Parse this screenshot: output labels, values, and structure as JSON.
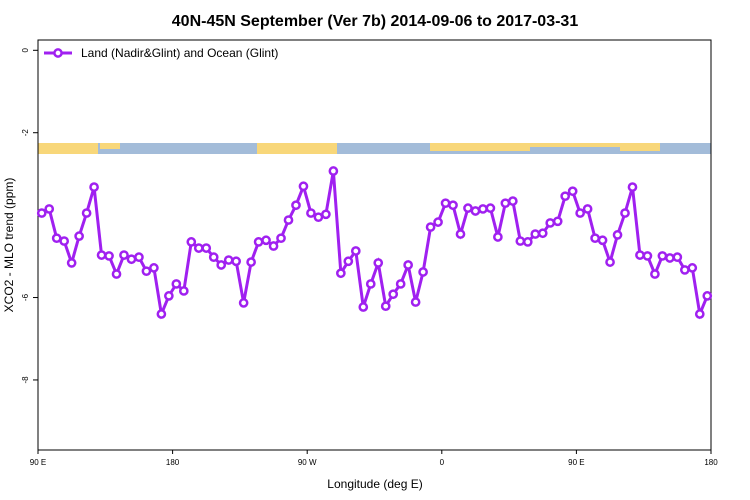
{
  "chart_data": {
    "type": "line",
    "title": "40N-45N September (Ver 7b)   2014-09-06 to 2017-03-31",
    "xlabel": "Longitude (deg E)",
    "ylabel": "XCO2 - MLO trend (ppm)",
    "xlim": [
      90,
      540
    ],
    "ylim": [
      -9.7,
      0.25
    ],
    "xticks": [
      {
        "value": 90,
        "label": "90 E"
      },
      180,
      {
        "value": 270,
        "label": "90 W"
      },
      {
        "value": 360,
        "label": "0"
      },
      {
        "value": 450,
        "label": "90 E"
      },
      {
        "value": 540,
        "label": "180"
      }
    ],
    "yticks": [
      0,
      -2,
      -6,
      -8
    ],
    "legend": "top-left",
    "x": [
      92.5,
      97.5,
      102.5,
      107.5,
      112.5,
      117.5,
      122.5,
      127.5,
      132.5,
      137.5,
      142.5,
      147.5,
      152.5,
      157.5,
      162.5,
      167.5,
      172.5,
      177.5,
      182.5,
      187.5,
      192.5,
      197.5,
      202.5,
      207.5,
      212.5,
      217.5,
      222.5,
      227.5,
      232.5,
      237.5,
      242.5,
      247.5,
      252.5,
      257.5,
      262.5,
      267.5,
      272.5,
      277.5,
      282.5,
      287.5,
      292.5,
      297.5,
      302.5,
      307.5,
      312.5,
      317.5,
      322.5,
      327.5,
      332.5,
      337.5,
      342.5,
      347.5,
      352.5,
      357.5,
      362.5,
      367.5,
      372.5,
      377.5,
      382.5,
      387.5,
      392.5,
      397.5,
      402.5,
      407.5,
      412.5,
      417.5,
      422.5,
      427.5,
      432.5,
      437.5,
      442.5,
      447.5,
      452.5,
      457.5,
      462.5,
      467.5,
      472.5,
      477.5,
      482.5,
      487.5,
      492.5,
      497.5,
      502.5,
      507.5,
      512.5,
      517.5,
      522.5,
      527.5,
      532.5,
      537.5
    ],
    "series": [
      {
        "name": "Land (Nadir&Glint) and Ocean (Glint)",
        "color": "#a020f0",
        "values": [
          -3.95,
          -3.85,
          -4.56,
          -4.63,
          -5.16,
          -4.51,
          -3.95,
          -3.32,
          -4.97,
          -4.99,
          -5.43,
          -4.97,
          -5.07,
          -5.02,
          -5.36,
          -5.28,
          -6.4,
          -5.96,
          -5.67,
          -5.84,
          -4.65,
          -4.8,
          -4.8,
          -5.02,
          -5.21,
          -5.09,
          -5.12,
          -6.13,
          -5.14,
          -4.65,
          -4.61,
          -4.75,
          -4.56,
          -4.12,
          -3.76,
          -3.3,
          -3.95,
          -4.05,
          -3.98,
          -2.93,
          -5.41,
          -5.12,
          -4.87,
          -6.23,
          -5.67,
          -5.16,
          -6.21,
          -5.92,
          -5.67,
          -5.21,
          -6.11,
          -5.38,
          -4.29,
          -4.17,
          -3.71,
          -3.76,
          -4.46,
          -3.83,
          -3.9,
          -3.85,
          -3.83,
          -4.53,
          -3.71,
          -3.66,
          -4.63,
          -4.65,
          -4.46,
          -4.44,
          -4.19,
          -4.15,
          -3.54,
          -3.42,
          -3.95,
          -3.85,
          -4.56,
          -4.61,
          -5.14,
          -4.48,
          -3.95,
          -3.32,
          -4.97,
          -4.99,
          -5.43,
          -4.99,
          -5.04,
          -5.02,
          -5.33,
          -5.28,
          -6.4,
          -5.96
        ]
      }
    ]
  }
}
